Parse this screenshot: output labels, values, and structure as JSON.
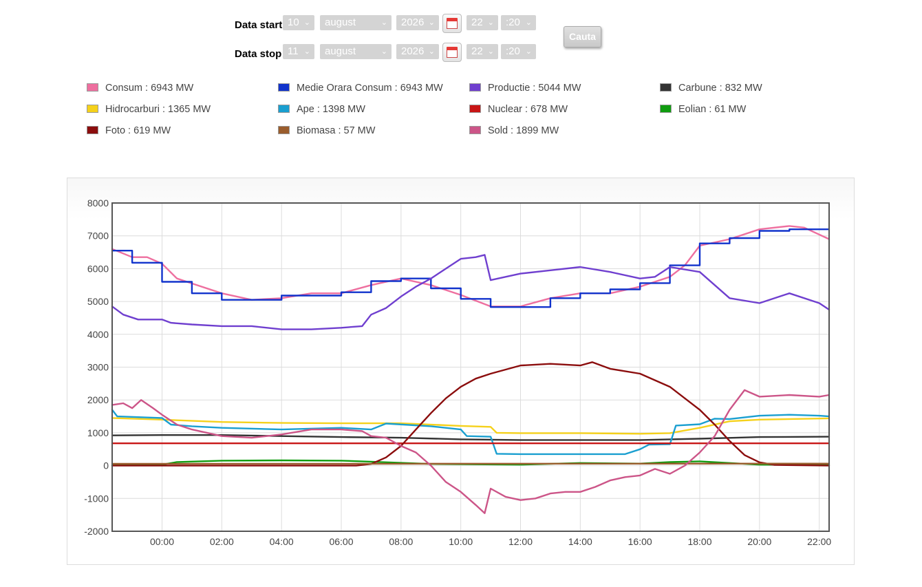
{
  "form": {
    "start_label": "Data start",
    "stop_label": "Data stop",
    "start": {
      "day": "10",
      "month": "august",
      "year": "2026",
      "hour": "22",
      "minute": ":20"
    },
    "stop": {
      "day": "11",
      "month": "august",
      "year": "2026",
      "hour": "22",
      "minute": ":20"
    },
    "calendar_icon": "calendar-icon",
    "chevron_icon": "chevron-down-icon",
    "search_label": "Cauta"
  },
  "legend": [
    {
      "label": "Consum : 6943 MW",
      "color": "#ee6f9f"
    },
    {
      "label": "Medie Orara Consum : 6943 MW",
      "color": "#1133cc"
    },
    {
      "label": "Productie : 5044 MW",
      "color": "#6f3fcf"
    },
    {
      "label": "Carbune : 832 MW",
      "color": "#333333"
    },
    {
      "label": "Hidrocarburi : 1365 MW",
      "color": "#f5d11b"
    },
    {
      "label": "Ape : 1398 MW",
      "color": "#1a9fd0"
    },
    {
      "label": "Nuclear : 678 MW",
      "color": "#c81515"
    },
    {
      "label": "Eolian : 61 MW",
      "color": "#109c10"
    },
    {
      "label": "Foto : 619 MW",
      "color": "#8b0d0d"
    },
    {
      "label": "Biomasa : 57 MW",
      "color": "#9a5d2d"
    },
    {
      "label": "Sold : 1899 MW",
      "color": "#cc5588"
    }
  ],
  "chart_data": {
    "type": "line",
    "x_unit": "hours",
    "xlim": [
      -1.67,
      22.33
    ],
    "ylim": [
      -2000,
      8000
    ],
    "yticks": [
      -2000,
      -1000,
      0,
      1000,
      2000,
      3000,
      4000,
      5000,
      6000,
      7000,
      8000
    ],
    "xticks": [
      {
        "x": 0,
        "label": "00:00"
      },
      {
        "x": 2,
        "label": "02:00"
      },
      {
        "x": 4,
        "label": "04:00"
      },
      {
        "x": 6,
        "label": "06:00"
      },
      {
        "x": 8,
        "label": "08:00"
      },
      {
        "x": 10,
        "label": "10:00"
      },
      {
        "x": 12,
        "label": "12:00"
      },
      {
        "x": 14,
        "label": "14:00"
      },
      {
        "x": 16,
        "label": "16:00"
      },
      {
        "x": 18,
        "label": "18:00"
      },
      {
        "x": 20,
        "label": "20:00"
      },
      {
        "x": 22,
        "label": "22:00"
      }
    ],
    "grid": true,
    "series": [
      {
        "legend_index": 0,
        "color": "#ee6f9f",
        "step": false,
        "points": [
          [
            -1.67,
            6600
          ],
          [
            -1,
            6350
          ],
          [
            -0.5,
            6350
          ],
          [
            0,
            6150
          ],
          [
            0.5,
            5700
          ],
          [
            1,
            5550
          ],
          [
            2,
            5250
          ],
          [
            3,
            5050
          ],
          [
            4,
            5100
          ],
          [
            5,
            5250
          ],
          [
            6,
            5250
          ],
          [
            7,
            5500
          ],
          [
            8,
            5700
          ],
          [
            9,
            5500
          ],
          [
            10,
            5200
          ],
          [
            11,
            4850
          ],
          [
            12,
            4850
          ],
          [
            13,
            5100
          ],
          [
            14,
            5250
          ],
          [
            15,
            5250
          ],
          [
            16,
            5450
          ],
          [
            17,
            5750
          ],
          [
            17.5,
            6100
          ],
          [
            18,
            6700
          ],
          [
            19,
            6900
          ],
          [
            20,
            7200
          ],
          [
            21,
            7300
          ],
          [
            21.5,
            7250
          ],
          [
            22.33,
            6900
          ]
        ]
      },
      {
        "legend_index": 1,
        "color": "#1133cc",
        "step": true,
        "points": [
          [
            -1.67,
            6550
          ],
          [
            -1,
            6550
          ],
          [
            -1,
            6180
          ],
          [
            0,
            6180
          ],
          [
            0,
            5600
          ],
          [
            1,
            5600
          ],
          [
            1,
            5250
          ],
          [
            2,
            5250
          ],
          [
            2,
            5050
          ],
          [
            4,
            5050
          ],
          [
            4,
            5180
          ],
          [
            6,
            5180
          ],
          [
            6,
            5280
          ],
          [
            7,
            5280
          ],
          [
            7,
            5620
          ],
          [
            8,
            5620
          ],
          [
            8,
            5700
          ],
          [
            9,
            5700
          ],
          [
            9,
            5400
          ],
          [
            10,
            5400
          ],
          [
            10,
            5080
          ],
          [
            11,
            5080
          ],
          [
            11,
            4830
          ],
          [
            13,
            4830
          ],
          [
            13,
            5100
          ],
          [
            14,
            5100
          ],
          [
            14,
            5250
          ],
          [
            15,
            5250
          ],
          [
            15,
            5370
          ],
          [
            16,
            5370
          ],
          [
            16,
            5560
          ],
          [
            17,
            5560
          ],
          [
            17,
            6100
          ],
          [
            18,
            6100
          ],
          [
            18,
            6770
          ],
          [
            19,
            6770
          ],
          [
            19,
            6930
          ],
          [
            20,
            6930
          ],
          [
            20,
            7150
          ],
          [
            21,
            7150
          ],
          [
            21,
            7200
          ],
          [
            22.33,
            7200
          ]
        ]
      },
      {
        "legend_index": 2,
        "color": "#6f3fcf",
        "step": false,
        "points": [
          [
            -1.67,
            4850
          ],
          [
            -1.3,
            4600
          ],
          [
            -0.8,
            4450
          ],
          [
            0,
            4450
          ],
          [
            0.3,
            4350
          ],
          [
            1,
            4300
          ],
          [
            2,
            4250
          ],
          [
            3,
            4250
          ],
          [
            4,
            4150
          ],
          [
            5,
            4150
          ],
          [
            6,
            4200
          ],
          [
            6.7,
            4250
          ],
          [
            7,
            4600
          ],
          [
            7.5,
            4800
          ],
          [
            8,
            5150
          ],
          [
            8.5,
            5450
          ],
          [
            9,
            5700
          ],
          [
            9.5,
            6000
          ],
          [
            10,
            6300
          ],
          [
            10.5,
            6350
          ],
          [
            10.8,
            6420
          ],
          [
            11,
            5650
          ],
          [
            12,
            5850
          ],
          [
            13,
            5950
          ],
          [
            14,
            6050
          ],
          [
            15,
            5900
          ],
          [
            16,
            5700
          ],
          [
            16.5,
            5750
          ],
          [
            17,
            6050
          ],
          [
            18,
            5900
          ],
          [
            19,
            5100
          ],
          [
            20,
            4950
          ],
          [
            21,
            5250
          ],
          [
            22,
            4950
          ],
          [
            22.33,
            4750
          ]
        ]
      },
      {
        "legend_index": 3,
        "color": "#333333",
        "step": false,
        "points": [
          [
            -1.67,
            920
          ],
          [
            0,
            930
          ],
          [
            2,
            930
          ],
          [
            4,
            900
          ],
          [
            6,
            870
          ],
          [
            8,
            850
          ],
          [
            10,
            800
          ],
          [
            12,
            780
          ],
          [
            14,
            780
          ],
          [
            16,
            780
          ],
          [
            18,
            820
          ],
          [
            20,
            870
          ],
          [
            22.33,
            880
          ]
        ]
      },
      {
        "legend_index": 4,
        "color": "#f5d11b",
        "step": false,
        "points": [
          [
            -1.67,
            1450
          ],
          [
            0,
            1400
          ],
          [
            2,
            1330
          ],
          [
            4,
            1300
          ],
          [
            6,
            1290
          ],
          [
            8,
            1290
          ],
          [
            10,
            1210
          ],
          [
            11,
            1180
          ],
          [
            11.2,
            1000
          ],
          [
            12,
            990
          ],
          [
            14,
            990
          ],
          [
            16,
            970
          ],
          [
            17,
            990
          ],
          [
            18,
            1150
          ],
          [
            19,
            1350
          ],
          [
            20,
            1400
          ],
          [
            22.33,
            1440
          ]
        ]
      },
      {
        "legend_index": 5,
        "color": "#1a9fd0",
        "step": false,
        "points": [
          [
            -1.67,
            1700
          ],
          [
            -1.5,
            1500
          ],
          [
            0,
            1450
          ],
          [
            0.3,
            1250
          ],
          [
            1,
            1200
          ],
          [
            2,
            1150
          ],
          [
            4,
            1100
          ],
          [
            6,
            1150
          ],
          [
            7,
            1100
          ],
          [
            7.5,
            1280
          ],
          [
            9,
            1200
          ],
          [
            10,
            1100
          ],
          [
            10.2,
            900
          ],
          [
            11,
            880
          ],
          [
            11.2,
            360
          ],
          [
            12,
            350
          ],
          [
            14,
            350
          ],
          [
            15.5,
            350
          ],
          [
            16,
            500
          ],
          [
            16.3,
            640
          ],
          [
            17,
            650
          ],
          [
            17.2,
            1220
          ],
          [
            18,
            1260
          ],
          [
            18.5,
            1430
          ],
          [
            19,
            1420
          ],
          [
            20,
            1520
          ],
          [
            21,
            1550
          ],
          [
            22,
            1520
          ],
          [
            22.33,
            1500
          ]
        ]
      },
      {
        "legend_index": 6,
        "color": "#c81515",
        "step": false,
        "points": [
          [
            -1.67,
            680
          ],
          [
            22.33,
            680
          ]
        ]
      },
      {
        "legend_index": 7,
        "color": "#109c10",
        "step": false,
        "points": [
          [
            -1.67,
            10
          ],
          [
            0,
            30
          ],
          [
            0.5,
            110
          ],
          [
            2,
            150
          ],
          [
            4,
            160
          ],
          [
            6,
            150
          ],
          [
            7,
            120
          ],
          [
            9,
            50
          ],
          [
            12,
            30
          ],
          [
            14,
            80
          ],
          [
            16,
            60
          ],
          [
            17,
            110
          ],
          [
            18,
            130
          ],
          [
            19,
            80
          ],
          [
            20,
            30
          ],
          [
            22.33,
            20
          ]
        ]
      },
      {
        "legend_index": 8,
        "color": "#8b0d0d",
        "step": false,
        "points": [
          [
            -1.67,
            0
          ],
          [
            6.5,
            0
          ],
          [
            7,
            50
          ],
          [
            7.5,
            250
          ],
          [
            8,
            600
          ],
          [
            8.5,
            1100
          ],
          [
            9,
            1600
          ],
          [
            9.5,
            2050
          ],
          [
            10,
            2400
          ],
          [
            10.5,
            2650
          ],
          [
            11,
            2800
          ],
          [
            12,
            3050
          ],
          [
            13,
            3100
          ],
          [
            14,
            3050
          ],
          [
            14.4,
            3150
          ],
          [
            15,
            2950
          ],
          [
            16,
            2800
          ],
          [
            17,
            2400
          ],
          [
            17.5,
            2050
          ],
          [
            18,
            1700
          ],
          [
            18.5,
            1250
          ],
          [
            19,
            750
          ],
          [
            19.5,
            320
          ],
          [
            20,
            100
          ],
          [
            20.5,
            20
          ],
          [
            22.33,
            0
          ]
        ]
      },
      {
        "legend_index": 9,
        "color": "#9a5d2d",
        "step": false,
        "points": [
          [
            -1.67,
            55
          ],
          [
            22.33,
            60
          ]
        ]
      },
      {
        "legend_index": 10,
        "color": "#cc5588",
        "step": false,
        "points": [
          [
            -1.67,
            1850
          ],
          [
            -1.3,
            1900
          ],
          [
            -1,
            1750
          ],
          [
            -0.7,
            2000
          ],
          [
            -0.3,
            1750
          ],
          [
            0,
            1550
          ],
          [
            0.5,
            1250
          ],
          [
            1,
            1100
          ],
          [
            2,
            900
          ],
          [
            3,
            850
          ],
          [
            4,
            950
          ],
          [
            5,
            1100
          ],
          [
            6,
            1100
          ],
          [
            6.7,
            1050
          ],
          [
            7,
            900
          ],
          [
            7.5,
            850
          ],
          [
            8,
            600
          ],
          [
            8.5,
            400
          ],
          [
            9,
            0
          ],
          [
            9.5,
            -500
          ],
          [
            10,
            -800
          ],
          [
            10.5,
            -1200
          ],
          [
            10.8,
            -1450
          ],
          [
            11,
            -700
          ],
          [
            11.5,
            -950
          ],
          [
            12,
            -1050
          ],
          [
            12.5,
            -1000
          ],
          [
            13,
            -850
          ],
          [
            13.5,
            -800
          ],
          [
            14,
            -800
          ],
          [
            14.5,
            -650
          ],
          [
            15,
            -450
          ],
          [
            15.5,
            -350
          ],
          [
            16,
            -300
          ],
          [
            16.5,
            -100
          ],
          [
            17,
            -250
          ],
          [
            17.5,
            0
          ],
          [
            18,
            400
          ],
          [
            18.5,
            900
          ],
          [
            19,
            1700
          ],
          [
            19.5,
            2300
          ],
          [
            20,
            2100
          ],
          [
            21,
            2150
          ],
          [
            22,
            2100
          ],
          [
            22.33,
            2150
          ]
        ]
      }
    ]
  }
}
